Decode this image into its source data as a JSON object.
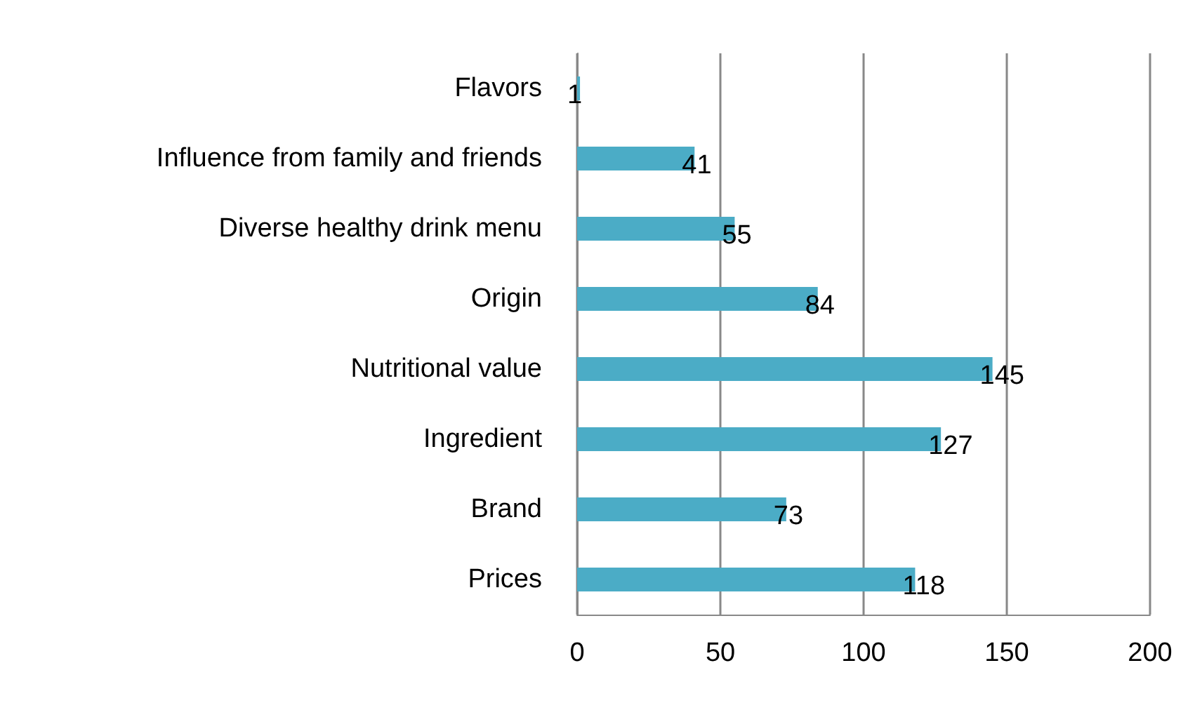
{
  "chart_data": {
    "type": "bar",
    "orientation": "horizontal",
    "categories": [
      "Flavors",
      "Influence from family and friends",
      "Diverse healthy drink menu",
      "Origin",
      "Nutritional value",
      "Ingredient",
      "Brand",
      "Prices"
    ],
    "values": [
      1,
      41,
      55,
      84,
      145,
      127,
      73,
      118
    ],
    "color": "#4bacc6",
    "data_labels": true,
    "xlim": [
      0,
      200
    ],
    "xticks": [
      0,
      50,
      100,
      150,
      200
    ],
    "grid": "x"
  }
}
